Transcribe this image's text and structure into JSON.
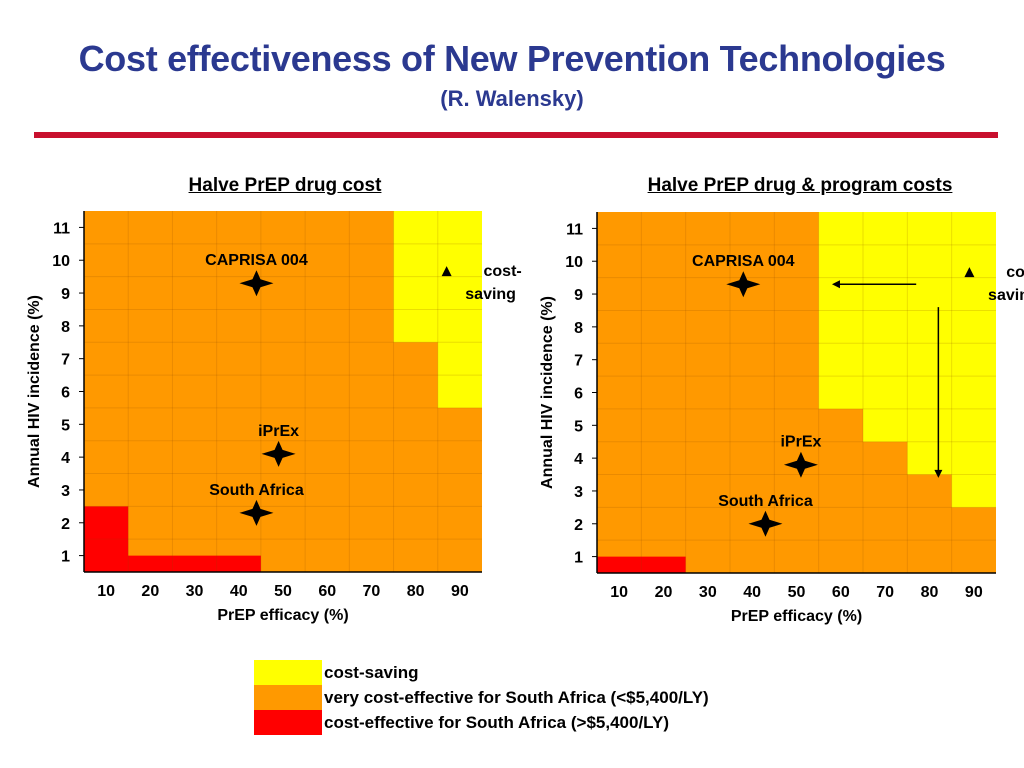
{
  "header": {
    "title": "Cost effectiveness of New Prevention Technologies",
    "subtitle": "(R. Walensky)"
  },
  "colors": {
    "title": "#2b3990",
    "rule": "#c8102e",
    "cost_saving": "#ffff00",
    "very_cost_effective": "#ff9900",
    "cost_effective": "#ff0000"
  },
  "legend": [
    {
      "label": "cost-saving",
      "color": "#ffff00"
    },
    {
      "label": "very cost-effective for South Africa (<$5,400/LY)",
      "color": "#ff9900"
    },
    {
      "label": "cost-effective for South Africa (>$5,400/LY)",
      "color": "#ff0000"
    }
  ],
  "chart_data": [
    {
      "type": "heatmap",
      "title": "Halve PrEP drug cost",
      "xlabel": "PrEP efficacy (%)",
      "ylabel": "Annual HIV incidence (%)",
      "x_ticks": [
        "10",
        "20",
        "30",
        "40",
        "50",
        "60",
        "70",
        "80",
        "90"
      ],
      "y_ticks": [
        "1",
        "2",
        "3",
        "4",
        "5",
        "6",
        "7",
        "8",
        "9",
        "10",
        "11"
      ],
      "xlim": [
        0,
        90
      ],
      "ylim": [
        0.5,
        11.5
      ],
      "regions": [
        {
          "category": "very cost-effective",
          "polygon": [
            [
              0,
              0.5
            ],
            [
              90,
              0.5
            ],
            [
              90,
              11.5
            ],
            [
              0,
              11.5
            ]
          ]
        },
        {
          "category": "cost-saving",
          "polygon": [
            [
              70,
              7.5
            ],
            [
              80,
              7.5
            ],
            [
              80,
              5.5
            ],
            [
              90,
              5.5
            ],
            [
              90,
              11.5
            ],
            [
              70,
              11.5
            ]
          ]
        },
        {
          "category": "cost-effective",
          "polygon": [
            [
              0,
              0.5
            ],
            [
              40,
              0.5
            ],
            [
              40,
              1.0
            ],
            [
              10,
              1.0
            ],
            [
              10,
              2.5
            ],
            [
              0,
              2.5
            ]
          ]
        }
      ],
      "points": [
        {
          "label": "CAPRISA 004",
          "x": 39,
          "y": 9.3
        },
        {
          "label": "iPrEx",
          "x": 44,
          "y": 4.1
        },
        {
          "label": "South Africa",
          "x": 39,
          "y": 2.3
        }
      ],
      "annotations": [
        {
          "text": "cost-\nsaving",
          "arrow": "up",
          "x": 82,
          "y": 9.7
        }
      ]
    },
    {
      "type": "heatmap",
      "title": "Halve PrEP drug & program costs",
      "xlabel": "PrEP efficacy (%)",
      "ylabel": "Annual HIV incidence (%)",
      "x_ticks": [
        "10",
        "20",
        "30",
        "40",
        "50",
        "60",
        "70",
        "80",
        "90"
      ],
      "y_ticks": [
        "1",
        "2",
        "3",
        "4",
        "5",
        "6",
        "7",
        "8",
        "9",
        "10",
        "11"
      ],
      "xlim": [
        0,
        90
      ],
      "ylim": [
        0.5,
        11.5
      ],
      "regions": [
        {
          "category": "very cost-effective",
          "polygon": [
            [
              0,
              0.5
            ],
            [
              90,
              0.5
            ],
            [
              90,
              11.5
            ],
            [
              0,
              11.5
            ]
          ]
        },
        {
          "category": "cost-saving",
          "polygon": [
            [
              50,
              11.5
            ],
            [
              50,
              5.5
            ],
            [
              60,
              5.5
            ],
            [
              60,
              4.5
            ],
            [
              70,
              4.5
            ],
            [
              70,
              3.5
            ],
            [
              80,
              3.5
            ],
            [
              80,
              2.5
            ],
            [
              90,
              2.5
            ],
            [
              90,
              11.5
            ]
          ]
        },
        {
          "category": "cost-effective",
          "polygon": [
            [
              0,
              0.5
            ],
            [
              20,
              0.5
            ],
            [
              20,
              1.0
            ],
            [
              0,
              1.0
            ]
          ]
        }
      ],
      "points": [
        {
          "label": "CAPRISA 004",
          "x": 33,
          "y": 9.3
        },
        {
          "label": "iPrEx",
          "x": 46,
          "y": 3.8
        },
        {
          "label": "South Africa",
          "x": 38,
          "y": 2.0
        }
      ],
      "annotations": [
        {
          "text": "cost-\nsaving",
          "arrow": "up",
          "x": 84,
          "y": 9.7
        },
        {
          "arrow": "left",
          "from": [
            72,
            9.3
          ],
          "to": [
            53,
            9.3
          ]
        },
        {
          "arrow": "down",
          "from": [
            77,
            8.6
          ],
          "to": [
            77,
            3.4
          ]
        }
      ]
    }
  ]
}
